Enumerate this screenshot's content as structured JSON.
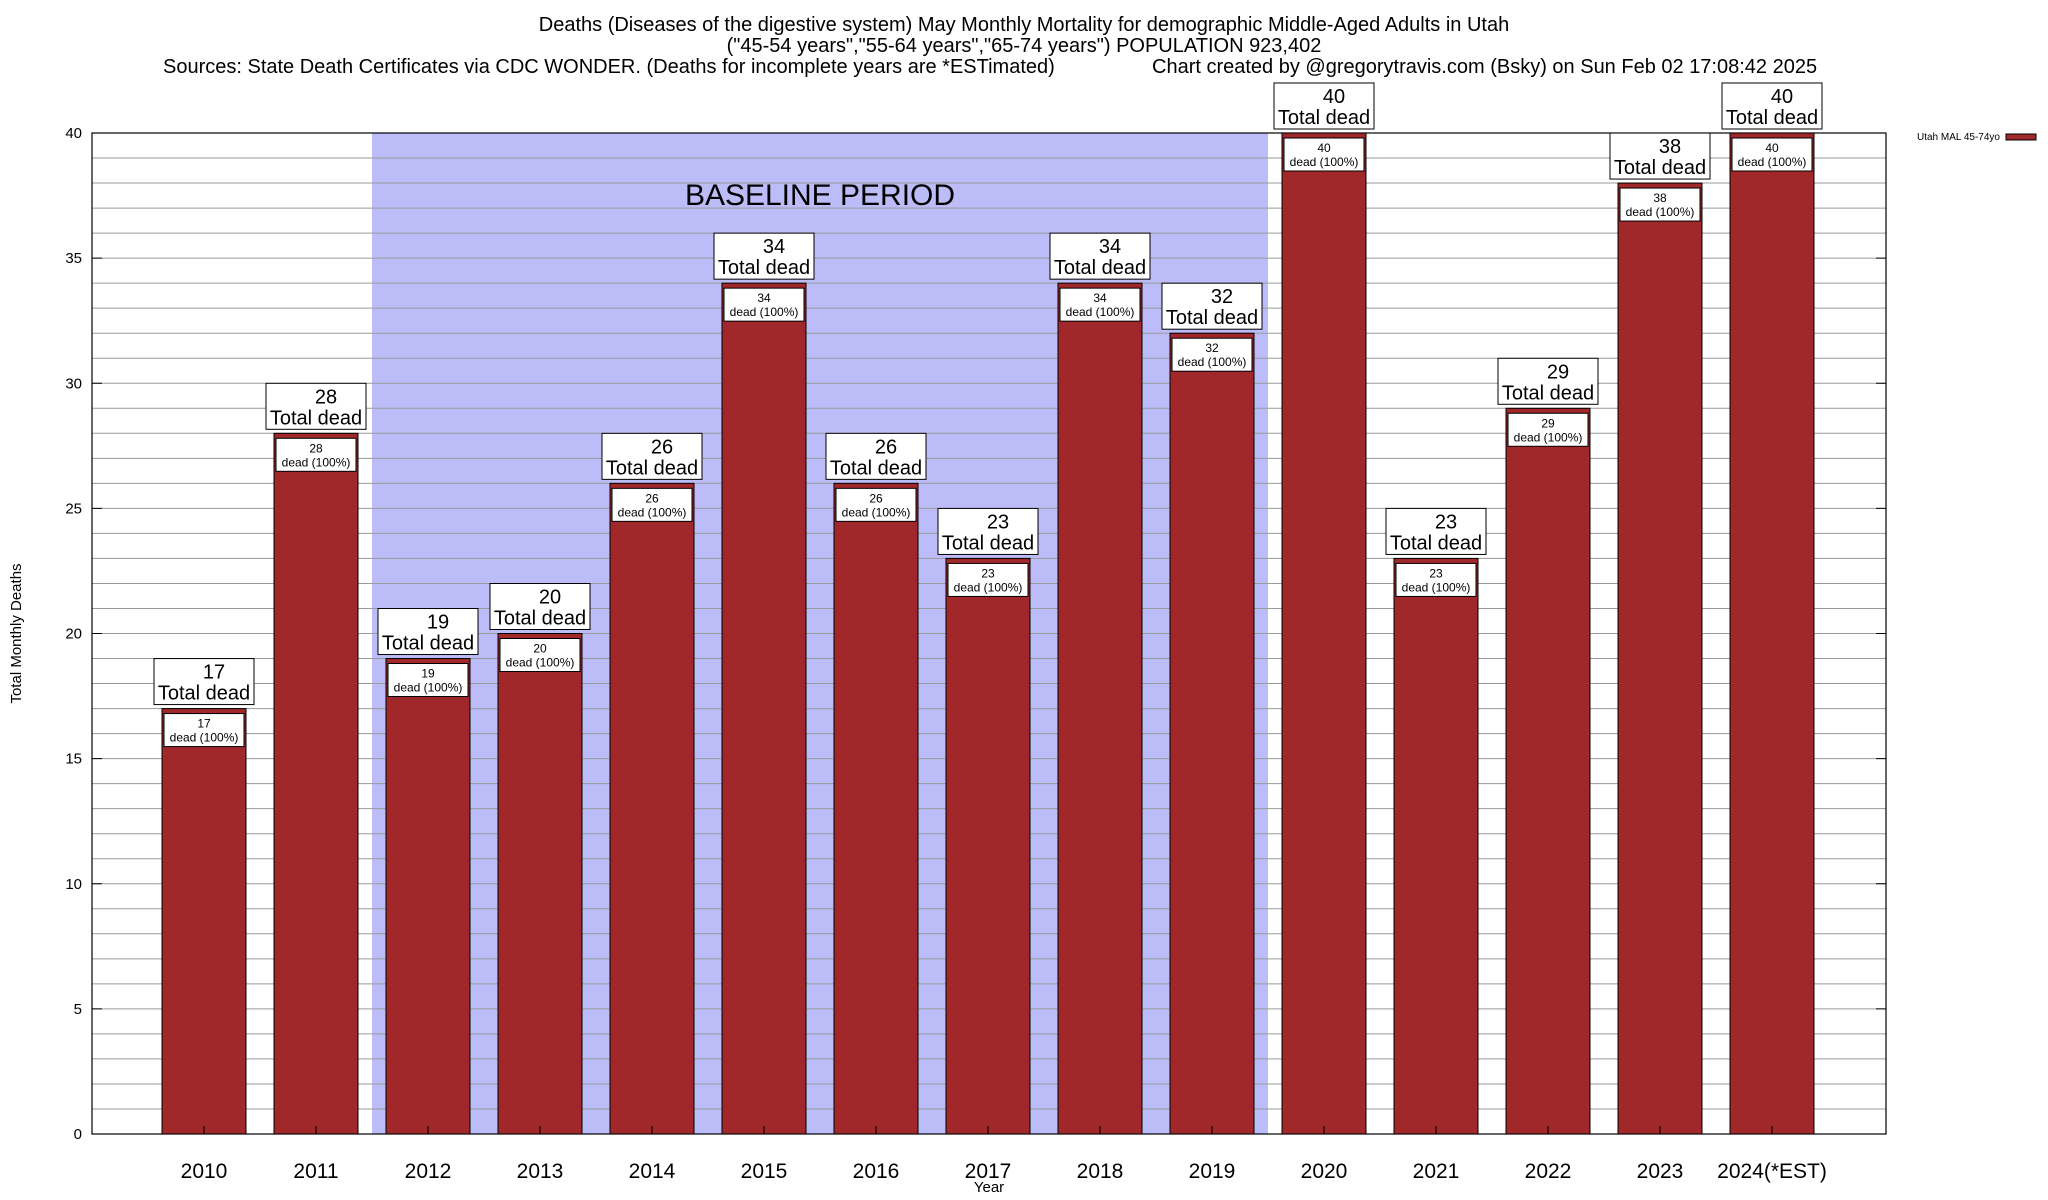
{
  "header": {
    "title_line1": "Deaths (Diseases of the digestive system) May Monthly Mortality for demographic Middle-Aged Adults in Utah",
    "title_line2": "(\"45-54 years\",\"55-64 years\",\"65-74 years\") POPULATION 923,402",
    "sources": "Sources: State Death Certificates via CDC WONDER. (Deaths for incomplete years are *ESTimated)",
    "credit": "Chart created by @gregorytravis.com (Bsky) on Sun Feb 02 17:08:42 2025"
  },
  "chart_data": {
    "type": "bar",
    "xlabel": "Year",
    "ylabel": "Total Monthly Deaths",
    "ylim": [
      0,
      40
    ],
    "y_ticks": [
      0,
      5,
      10,
      15,
      20,
      25,
      30,
      35,
      40
    ],
    "grid": true,
    "categories": [
      "2010",
      "2011",
      "2012",
      "2013",
      "2014",
      "2015",
      "2016",
      "2017",
      "2018",
      "2019",
      "2020",
      "2021",
      "2022",
      "2023",
      "2024(*EST)"
    ],
    "series": [
      {
        "name": "Utah MAL 45-74yo",
        "color": "#a0282a",
        "values": [
          17,
          28,
          19,
          20,
          26,
          34,
          26,
          23,
          34,
          32,
          40,
          23,
          29,
          38,
          40
        ]
      }
    ],
    "top_label_suffix": "Total dead",
    "inner_label_suffix": "dead (100%)",
    "baseline_period": {
      "label": "BASELINE PERIOD",
      "from": "2012",
      "to": "2019",
      "color": "#bcbcf8"
    },
    "legend_position": "top-right"
  }
}
